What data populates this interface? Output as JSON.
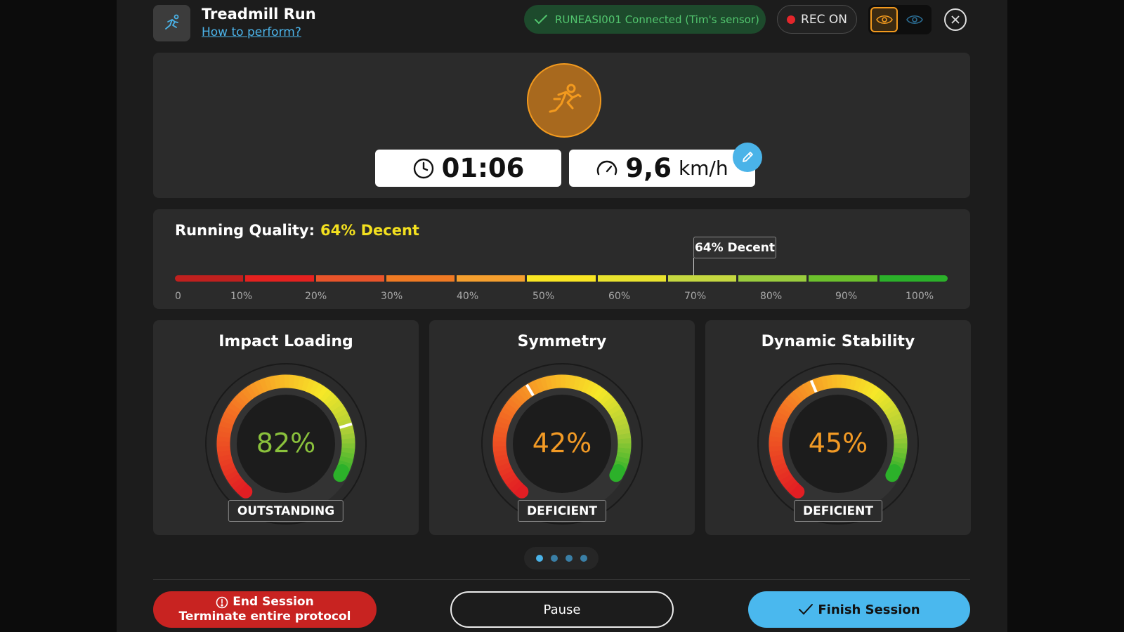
{
  "header": {
    "title": "Treadmill Run",
    "help_link": "How to perform?",
    "connection_status": "RUNEASI001 Connected (Tim's sensor)",
    "rec_label": "REC ON",
    "header_icon": "running-person-icon"
  },
  "session": {
    "timer": "01:06",
    "speed_value": "9,6",
    "speed_unit": "km/h"
  },
  "running_quality": {
    "label": "Running Quality:",
    "value_text": "64% Decent",
    "marker_text": "64% Decent",
    "percent": 64,
    "ticks": [
      "0",
      "10%",
      "20%",
      "30%",
      "40%",
      "50%",
      "60%",
      "70%",
      "80%",
      "90%",
      "100%"
    ],
    "segment_colors": [
      "#c0201e",
      "#e5211f",
      "#e9542a",
      "#f07a23",
      "#f59f2e",
      "#f9e623",
      "#e9e32e",
      "#c5d840",
      "#9acd3d",
      "#6cc12c",
      "#2bb12a"
    ]
  },
  "gauges": [
    {
      "title": "Impact Loading",
      "value": "82%",
      "percent": 82,
      "rating": "OUTSTANDING",
      "value_color": "#8ac13c"
    },
    {
      "title": "Symmetry",
      "value": "42%",
      "percent": 42,
      "rating": "DEFICIENT",
      "value_color": "#f29a25"
    },
    {
      "title": "Dynamic Stability",
      "value": "45%",
      "percent": 45,
      "rating": "DEFICIENT",
      "value_color": "#f29a25"
    }
  ],
  "pager": {
    "count": 4,
    "active": 0
  },
  "buttons": {
    "end_title": "End Session",
    "end_subtitle": "Terminate entire protocol",
    "pause": "Pause",
    "finish": "Finish Session"
  },
  "colors": {
    "accent": "#f39a1e",
    "blue": "#4ab3e8",
    "danger": "#c82321",
    "connected": "#52c56e"
  }
}
